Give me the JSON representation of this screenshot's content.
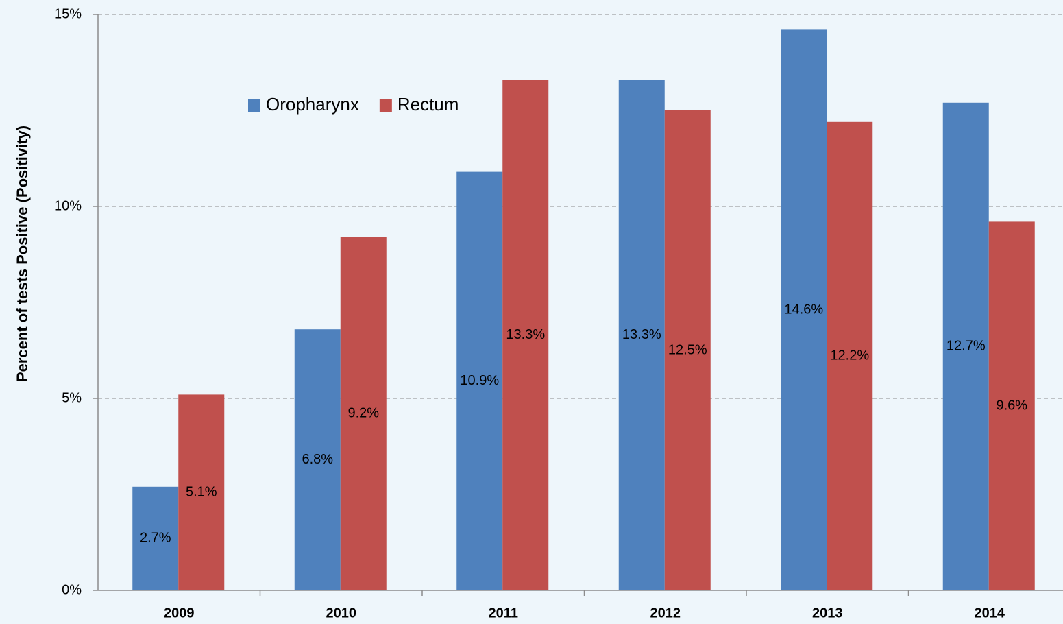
{
  "chart_data": {
    "type": "bar",
    "y_label": "Percent of tests Positive (Positivity)",
    "categories": [
      "2009",
      "2010",
      "2011",
      "2012",
      "2013",
      "2014"
    ],
    "series": [
      {
        "name": "Oropharynx",
        "color": "#4f81bd",
        "values": [
          2.7,
          6.8,
          10.9,
          13.3,
          14.6,
          12.7
        ],
        "value_labels": [
          "2.7%",
          "6.8%",
          "10.9%",
          "13.3%",
          "14.6%",
          "12.7%"
        ]
      },
      {
        "name": "Rectum",
        "color": "#c0504d",
        "values": [
          5.1,
          9.2,
          13.3,
          12.5,
          12.2,
          9.6
        ],
        "value_labels": [
          "5.1%",
          "9.2%",
          "13.3%",
          "12.5%",
          "12.2%",
          "9.6%"
        ]
      }
    ],
    "ylim": [
      0,
      15
    ],
    "yticks": [
      {
        "value": 0,
        "label": "0%"
      },
      {
        "value": 5,
        "label": "5%"
      },
      {
        "value": 10,
        "label": "10%"
      },
      {
        "value": 15,
        "label": "15%"
      }
    ],
    "grid": true
  }
}
